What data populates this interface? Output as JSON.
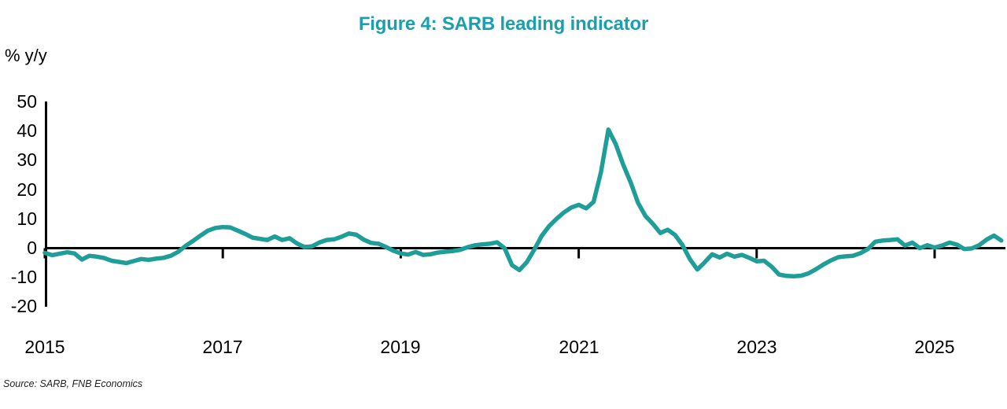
{
  "title": "Figure 4: SARB leading indicator",
  "y_axis_unit": "% y/y",
  "source": "Source: SARB, FNB Economics",
  "colors": {
    "title": "#18A0AC",
    "line": "#1F9E99",
    "axis": "#000000",
    "background": "#ffffff"
  },
  "chart_data": {
    "type": "line",
    "title": "Figure 4: SARB leading indicator",
    "ylabel": "% y/y",
    "series_name": "SARB leading indicator, % y/y",
    "frequency": "monthly",
    "x_start": "2015-01",
    "x_end": "2025-10",
    "ylim": [
      -20,
      50
    ],
    "grid": false,
    "legend": "none",
    "zero_line": true,
    "y_ticks": [
      50,
      40,
      30,
      20,
      10,
      0,
      -10,
      -20
    ],
    "x_tick_labels": [
      "2015",
      "2017",
      "2019",
      "2021",
      "2023",
      "2025"
    ],
    "values": [
      -1.6,
      -2.4,
      -1.9,
      -1.4,
      -1.8,
      -3.9,
      -2.6,
      -2.9,
      -3.4,
      -4.3,
      -4.7,
      -5.1,
      -4.4,
      -3.7,
      -4.0,
      -3.6,
      -3.3,
      -2.6,
      -1.2,
      0.8,
      2.5,
      4.3,
      6.0,
      6.9,
      7.2,
      7.1,
      6.0,
      4.9,
      3.6,
      3.2,
      2.8,
      4.0,
      2.8,
      3.4,
      1.6,
      0.4,
      0.6,
      1.9,
      2.8,
      3.0,
      3.9,
      5.0,
      4.6,
      2.9,
      1.8,
      1.5,
      0.4,
      -0.9,
      -1.8,
      -2.2,
      -1.3,
      -2.3,
      -2.1,
      -1.5,
      -1.2,
      -1.0,
      -0.6,
      0.3,
      1.0,
      1.3,
      1.5,
      2.0,
      0.0,
      -5.8,
      -7.5,
      -4.8,
      -0.5,
      4.2,
      7.5,
      10.0,
      12.2,
      13.9,
      14.8,
      13.6,
      15.8,
      26.0,
      40.5,
      35.5,
      28.5,
      22.5,
      15.5,
      11.0,
      8.3,
      5.2,
      6.3,
      4.5,
      1.0,
      -3.8,
      -7.3,
      -4.8,
      -2.1,
      -3.2,
      -1.9,
      -2.9,
      -2.3,
      -3.3,
      -4.5,
      -4.3,
      -6.3,
      -9.0,
      -9.5,
      -9.6,
      -9.4,
      -8.6,
      -7.2,
      -5.6,
      -4.2,
      -3.1,
      -2.8,
      -2.6,
      -1.7,
      -0.3,
      2.2,
      2.6,
      2.8,
      3.0,
      0.9,
      1.9,
      0.0,
      1.0,
      0.2,
      0.9,
      1.9,
      1.2,
      -0.3,
      -0.1,
      1.0,
      2.9,
      4.3,
      2.6
    ]
  }
}
